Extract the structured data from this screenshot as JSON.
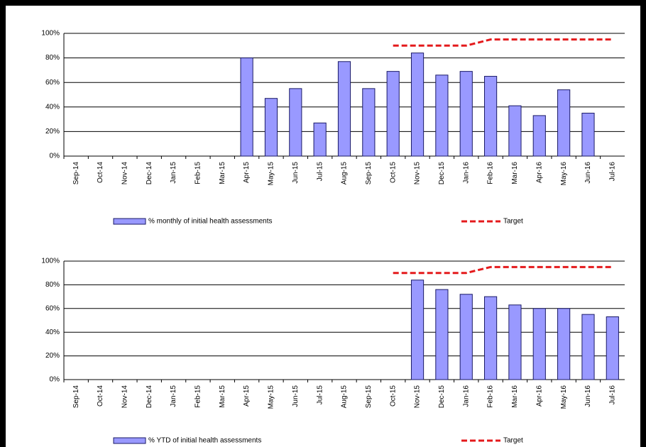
{
  "chart_data": [
    {
      "type": "bar",
      "categories": [
        "Sep-14",
        "Oct-14",
        "Nov-14",
        "Dec-14",
        "Jan-15",
        "Feb-15",
        "Mar-15",
        "Apr-15",
        "May-15",
        "Jun-15",
        "Jul-15",
        "Aug-15",
        "Sep-15",
        "Oct-15",
        "Nov-15",
        "Dec-15",
        "Jan-16",
        "Feb-16",
        "Mar-16",
        "Apr-16",
        "May-16",
        "Jun-16",
        "Jul-16"
      ],
      "series": [
        {
          "name": "% monthly of initial health assessments",
          "color": "#9999ff",
          "type": "bar",
          "values": [
            null,
            null,
            null,
            null,
            null,
            null,
            null,
            80,
            47,
            55,
            27,
            77,
            55,
            69,
            84,
            66,
            69,
            65,
            41,
            33,
            54,
            35,
            null
          ]
        },
        {
          "name": "Target",
          "color": "#e41a1c",
          "type": "line",
          "values": [
            null,
            null,
            null,
            null,
            null,
            null,
            null,
            null,
            null,
            null,
            null,
            null,
            null,
            90,
            90,
            90,
            90,
            95,
            95,
            95,
            95,
            95,
            95
          ]
        }
      ],
      "ylim": [
        0,
        100
      ],
      "yticks": [
        {
          "value": 0,
          "label": "0%"
        },
        {
          "value": 20,
          "label": "20%"
        },
        {
          "value": 40,
          "label": "40%"
        },
        {
          "value": 60,
          "label": "60%"
        },
        {
          "value": 80,
          "label": "80%"
        },
        {
          "value": 100,
          "label": "100%"
        }
      ],
      "grid": true
    },
    {
      "type": "bar",
      "categories": [
        "Sep-14",
        "Oct-14",
        "Nov-14",
        "Dec-14",
        "Jan-15",
        "Feb-15",
        "Mar-15",
        "Apr-15",
        "May-15",
        "Jun-15",
        "Jul-15",
        "Aug-15",
        "Sep-15",
        "Oct-15",
        "Nov-15",
        "Dec-15",
        "Jan-16",
        "Feb-16",
        "Mar-16",
        "Apr-16",
        "May-16",
        "Jun-16",
        "Jul-16"
      ],
      "series": [
        {
          "name": "% YTD of initial health assessments",
          "color": "#9999ff",
          "type": "bar",
          "values": [
            null,
            null,
            null,
            null,
            null,
            null,
            null,
            null,
            null,
            null,
            null,
            null,
            null,
            null,
            84,
            76,
            72,
            70,
            63,
            60,
            60,
            55,
            53
          ]
        },
        {
          "name": "Target",
          "color": "#e41a1c",
          "type": "line",
          "values": [
            null,
            null,
            null,
            null,
            null,
            null,
            null,
            null,
            null,
            null,
            null,
            null,
            null,
            90,
            90,
            90,
            90,
            95,
            95,
            95,
            95,
            95,
            95
          ]
        }
      ],
      "ylim": [
        0,
        100
      ],
      "yticks": [
        {
          "value": 0,
          "label": "0%"
        },
        {
          "value": 20,
          "label": "20%"
        },
        {
          "value": 40,
          "label": "40%"
        },
        {
          "value": 60,
          "label": "60%"
        },
        {
          "value": 80,
          "label": "80%"
        },
        {
          "value": 100,
          "label": "100%"
        }
      ],
      "grid": true
    }
  ]
}
